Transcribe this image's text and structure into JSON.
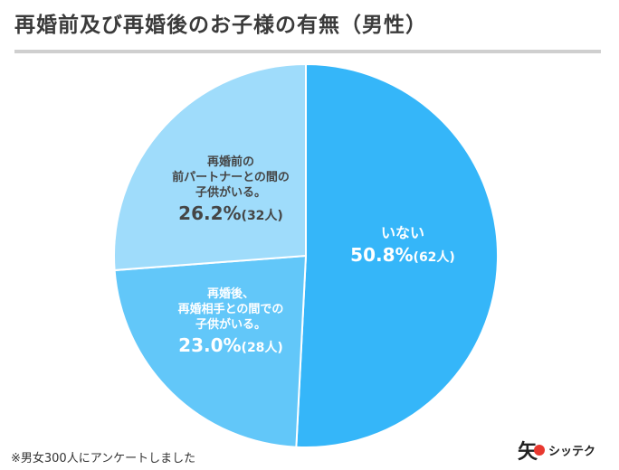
{
  "title": "再婚前及び再婚後のお子様の有無（男性）",
  "colors": [
    "#35b6f9",
    "#62c7f9",
    "#9fdcfb"
  ],
  "chart_data": {
    "type": "pie",
    "title": "再婚前及び再婚後のお子様の有無（男性）",
    "slices": [
      {
        "label": [
          "いない"
        ],
        "percent": "50.8%",
        "count": "(62人)",
        "value": 50.8
      },
      {
        "label": [
          "再婚後、",
          "再婚相手との間での",
          "子供がいる。"
        ],
        "percent": "23.0%",
        "count": "(28人)",
        "value": 23.0
      },
      {
        "label": [
          "再婚前の",
          "前パートナーとの間の",
          "子供がいる。"
        ],
        "percent": "26.2%",
        "count": "(32人)",
        "value": 26.2
      }
    ]
  },
  "footnote": "※男女300人にアンケートしました",
  "logo": {
    "mark": "矢",
    "text": "シッテク"
  }
}
